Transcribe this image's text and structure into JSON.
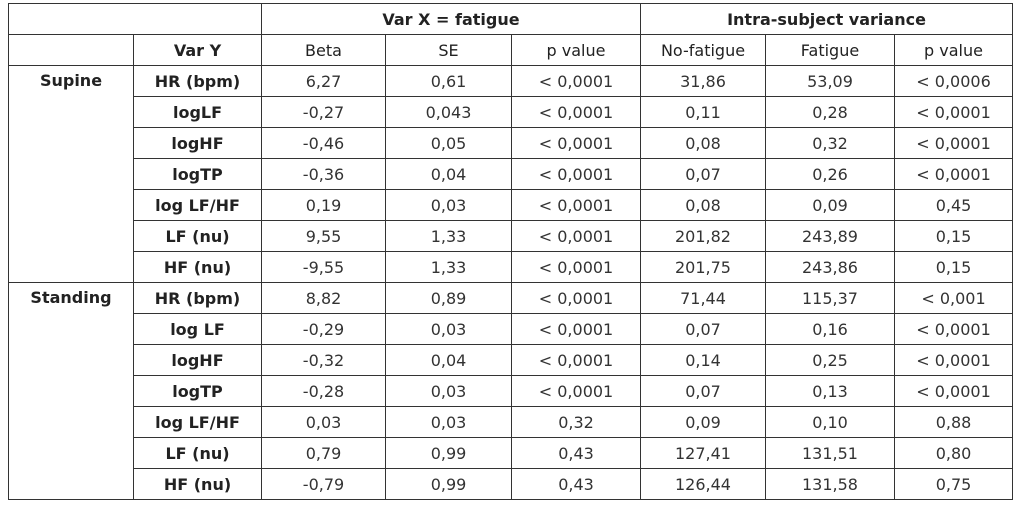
{
  "header": {
    "title_left": "Var X = fatigue",
    "title_right": "Intra-subject  variance"
  },
  "columns": [
    "Var Y",
    "Beta",
    "SE",
    "p value",
    "No-fatigue",
    "Fatigue",
    "p value"
  ],
  "groups": [
    {
      "name": "Supine",
      "rows": [
        [
          "HR (bpm)",
          "6,27",
          "0,61",
          "< 0,0001",
          "31,86",
          "53,09",
          "< 0,0006"
        ],
        [
          "logLF",
          "-0,27",
          "0,043",
          "< 0,0001",
          "0,11",
          "0,28",
          "< 0,0001"
        ],
        [
          "logHF",
          "-0,46",
          "0,05",
          "< 0,0001",
          "0,08",
          "0,32",
          "< 0,0001"
        ],
        [
          "logTP",
          "-0,36",
          "0,04",
          "< 0,0001",
          "0,07",
          "0,26",
          "< 0,0001"
        ],
        [
          "log LF/HF",
          "0,19",
          "0,03",
          "< 0,0001",
          "0,08",
          "0,09",
          "0,45"
        ],
        [
          "LF (nu)",
          "9,55",
          "1,33",
          "< 0,0001",
          "201,82",
          "243,89",
          "0,15"
        ],
        [
          "HF (nu)",
          "-9,55",
          "1,33",
          "< 0,0001",
          "201,75",
          "243,86",
          "0,15"
        ]
      ]
    },
    {
      "name": "Standing",
      "rows": [
        [
          "HR (bpm)",
          "8,82",
          "0,89",
          "< 0,0001",
          "71,44",
          "115,37",
          "< 0,001"
        ],
        [
          "log LF",
          "-0,29",
          "0,03",
          "< 0,0001",
          "0,07",
          "0,16",
          "< 0,0001"
        ],
        [
          "logHF",
          "-0,32",
          "0,04",
          "< 0,0001",
          "0,14",
          "0,25",
          "< 0,0001"
        ],
        [
          "logTP",
          "-0,28",
          "0,03",
          "< 0,0001",
          "0,07",
          "0,13",
          "< 0,0001"
        ],
        [
          "log LF/HF",
          "0,03",
          "0,03",
          "0,32",
          "0,09",
          "0,10",
          "0,88"
        ],
        [
          "LF (nu)",
          "0,79",
          "0,99",
          "0,43",
          "127,41",
          "131,51",
          "0,80"
        ],
        [
          "HF (nu)",
          "-0,79",
          "0,99",
          "0,43",
          "126,44",
          "131,58",
          "0,75"
        ]
      ]
    }
  ]
}
